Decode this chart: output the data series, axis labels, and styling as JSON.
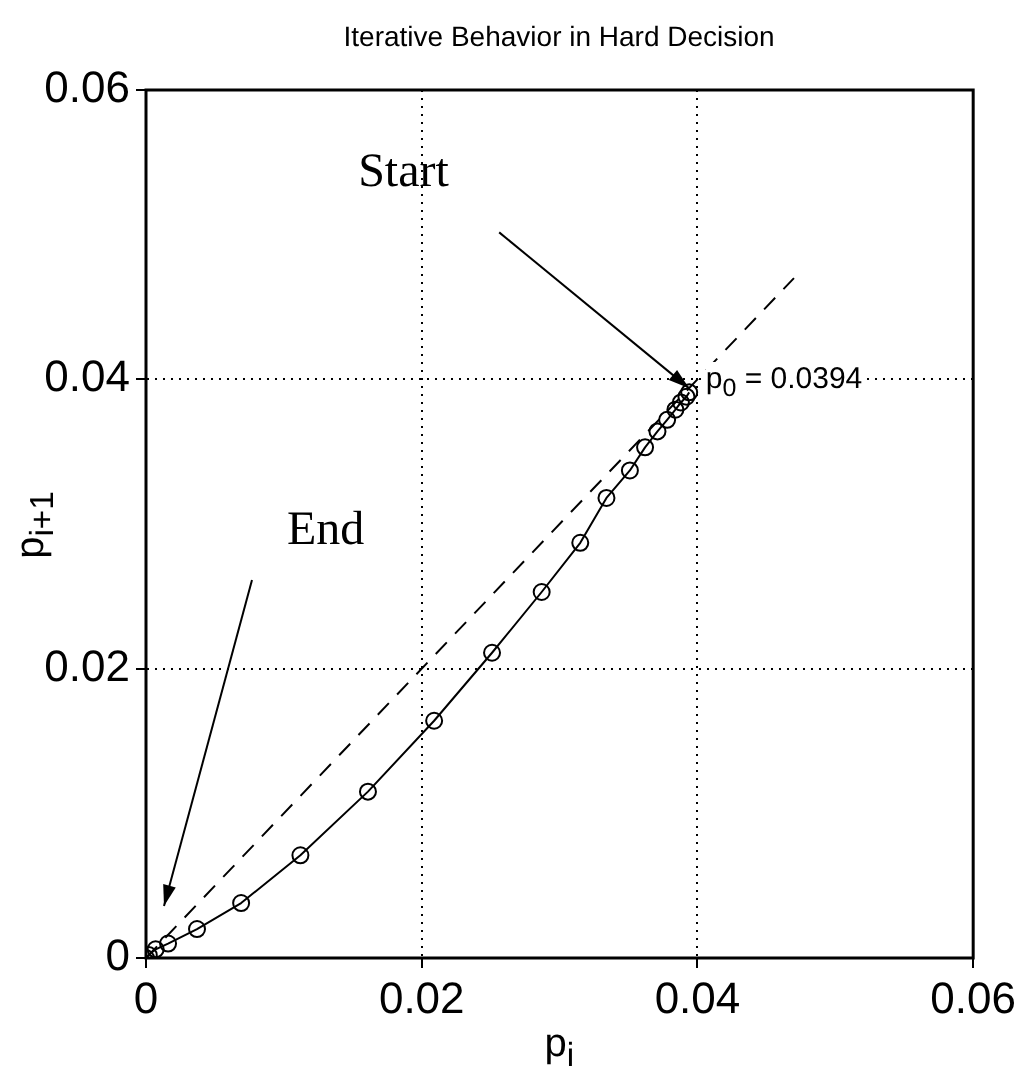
{
  "chart_data": {
    "type": "line",
    "title": "Iterative Behavior in Hard Decision",
    "xlabel": "p$_{i}$",
    "ylabel": "p$_{i+1}$",
    "xlim": [
      0,
      0.06
    ],
    "ylim": [
      0,
      0.06
    ],
    "xticks": [
      0,
      0.02,
      0.04,
      0.06
    ],
    "yticks": [
      0,
      0.02,
      0.04,
      0.06
    ],
    "grid": true,
    "legend": false,
    "series": [
      {
        "color": "#000000",
        "marker": "circle",
        "line_style": "solid",
        "x": [
          0.0394,
          0.0392,
          0.0388,
          0.0384,
          0.0378,
          0.0371,
          0.0362,
          0.0351,
          0.0334,
          0.0315,
          0.0287,
          0.0251,
          0.0209,
          0.0161,
          0.0112,
          0.0069,
          0.0037,
          0.0016,
          0.0007,
          0.0002,
          0
        ],
        "values": [
          0.0391,
          0.0388,
          0.0384,
          0.0379,
          0.0372,
          0.0364,
          0.0353,
          0.0337,
          0.0318,
          0.0287,
          0.0253,
          0.0211,
          0.0164,
          0.0115,
          0.0071,
          0.0038,
          0.002,
          0.001,
          0.0006,
          0.0002,
          0
        ]
      },
      {
        "color": "#000000",
        "marker": "none",
        "line_style": "dashed",
        "x": [
          0,
          0.047
        ],
        "values": [
          0,
          0.047
        ]
      }
    ],
    "annotations": [
      {
        "text": "Start",
        "x": 0.0394,
        "y": 0.0391
      },
      "End",
      {
        "text": "p$_{0}$ = 0.0394",
        "x": 0.0406,
        "y": 0.0398
      }
    ]
  }
}
